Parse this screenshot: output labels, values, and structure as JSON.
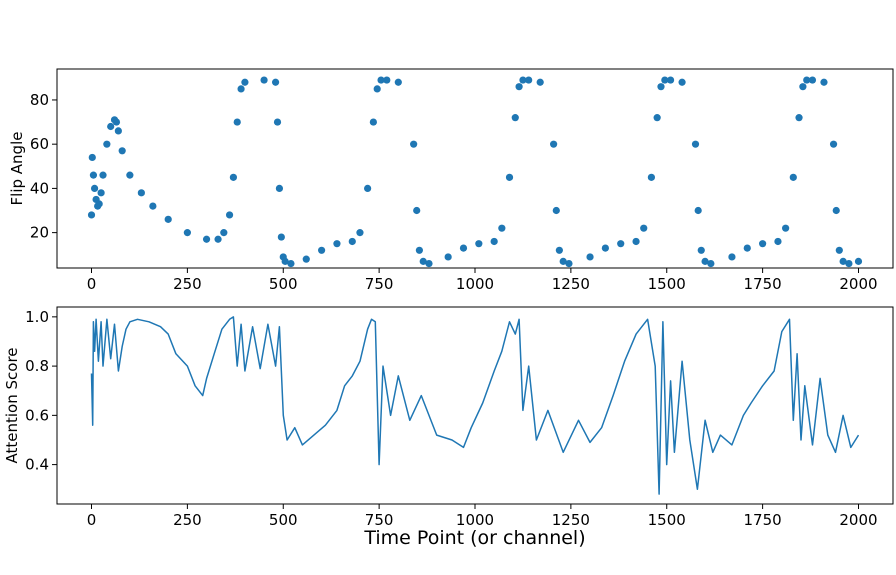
{
  "chart_data": [
    {
      "type": "scatter",
      "title": "",
      "xlabel": "",
      "ylabel": "Flip Angle",
      "xlim": [
        -90,
        2090
      ],
      "ylim": [
        4,
        94
      ],
      "xticks": [
        0,
        250,
        500,
        750,
        1000,
        1250,
        1500,
        1750,
        2000
      ],
      "yticks": [
        20,
        40,
        60,
        80
      ],
      "grid": false,
      "color": "#1f77b4",
      "series": [
        {
          "x": [
            0,
            2,
            5,
            8,
            12,
            16,
            20,
            25,
            30,
            40,
            50,
            60,
            65,
            70,
            80,
            100,
            130,
            160,
            200,
            250,
            300,
            330,
            345,
            360,
            370,
            380,
            390,
            400,
            450,
            480,
            485,
            490,
            495,
            500,
            505,
            520,
            560,
            600,
            640,
            680,
            700,
            720,
            735,
            745,
            755,
            770,
            800,
            840,
            848,
            855,
            865,
            880,
            930,
            970,
            1010,
            1050,
            1070,
            1090,
            1105,
            1115,
            1125,
            1140,
            1170,
            1205,
            1212,
            1220,
            1230,
            1245,
            1300,
            1340,
            1380,
            1420,
            1440,
            1460,
            1475,
            1485,
            1495,
            1510,
            1540,
            1575,
            1582,
            1590,
            1600,
            1615,
            1670,
            1710,
            1750,
            1790,
            1810,
            1830,
            1845,
            1855,
            1865,
            1880,
            1910,
            1935,
            1942,
            1950,
            1960,
            1975,
            2000
          ],
          "y": [
            28,
            54,
            46,
            40,
            35,
            32,
            33,
            38,
            46,
            60,
            68,
            71,
            70,
            66,
            57,
            46,
            38,
            32,
            26,
            20,
            17,
            17,
            20,
            28,
            45,
            70,
            85,
            88,
            89,
            88,
            70,
            40,
            18,
            9,
            7,
            6,
            8,
            12,
            15,
            16,
            20,
            40,
            70,
            85,
            89,
            89,
            88,
            60,
            30,
            12,
            7,
            6,
            9,
            13,
            15,
            16,
            22,
            45,
            72,
            86,
            89,
            89,
            88,
            60,
            30,
            12,
            7,
            6,
            9,
            13,
            15,
            16,
            22,
            45,
            72,
            86,
            89,
            89,
            88,
            60,
            30,
            12,
            7,
            6,
            9,
            13,
            15,
            16,
            22,
            45,
            72,
            86,
            89,
            89,
            88,
            60,
            30,
            12,
            7,
            6,
            7
          ]
        }
      ]
    },
    {
      "type": "line",
      "title": "",
      "xlabel": "Time Point (or channel)",
      "ylabel": "Attention Score",
      "xlim": [
        -90,
        2090
      ],
      "ylim": [
        0.24,
        1.04
      ],
      "xticks": [
        0,
        250,
        500,
        750,
        1000,
        1250,
        1500,
        1750,
        2000
      ],
      "yticks": [
        0.4,
        0.6,
        0.8,
        1.0
      ],
      "grid": false,
      "color": "#1f77b4",
      "series": [
        {
          "x": [
            0,
            3,
            5,
            8,
            12,
            18,
            25,
            30,
            40,
            50,
            60,
            70,
            80,
            90,
            100,
            120,
            150,
            180,
            200,
            220,
            250,
            270,
            290,
            300,
            320,
            340,
            360,
            370,
            380,
            390,
            400,
            420,
            440,
            460,
            480,
            490,
            500,
            510,
            530,
            550,
            580,
            610,
            640,
            660,
            680,
            700,
            720,
            730,
            740,
            750,
            760,
            780,
            800,
            830,
            860,
            900,
            940,
            970,
            990,
            1020,
            1050,
            1070,
            1090,
            1105,
            1115,
            1125,
            1140,
            1160,
            1190,
            1230,
            1270,
            1300,
            1330,
            1360,
            1390,
            1420,
            1450,
            1470,
            1480,
            1490,
            1500,
            1510,
            1520,
            1540,
            1560,
            1580,
            1600,
            1620,
            1640,
            1670,
            1700,
            1720,
            1750,
            1780,
            1800,
            1820,
            1830,
            1840,
            1850,
            1860,
            1880,
            1900,
            1920,
            1940,
            1960,
            1980,
            2000
          ],
          "y": [
            0.77,
            0.56,
            0.98,
            0.86,
            0.99,
            0.82,
            0.98,
            0.8,
            0.99,
            0.83,
            0.97,
            0.78,
            0.88,
            0.95,
            0.98,
            0.99,
            0.98,
            0.96,
            0.93,
            0.85,
            0.8,
            0.72,
            0.68,
            0.75,
            0.85,
            0.95,
            0.99,
            1.0,
            0.8,
            0.97,
            0.78,
            0.96,
            0.79,
            0.97,
            0.8,
            0.96,
            0.6,
            0.5,
            0.55,
            0.48,
            0.52,
            0.56,
            0.62,
            0.72,
            0.76,
            0.82,
            0.95,
            0.99,
            0.98,
            0.4,
            0.8,
            0.6,
            0.76,
            0.58,
            0.68,
            0.52,
            0.5,
            0.47,
            0.55,
            0.65,
            0.78,
            0.86,
            0.98,
            0.93,
            0.99,
            0.62,
            0.8,
            0.5,
            0.62,
            0.45,
            0.58,
            0.49,
            0.55,
            0.68,
            0.82,
            0.93,
            0.99,
            0.8,
            0.28,
            0.98,
            0.4,
            0.74,
            0.45,
            0.82,
            0.5,
            0.3,
            0.58,
            0.45,
            0.52,
            0.48,
            0.6,
            0.65,
            0.72,
            0.78,
            0.94,
            0.99,
            0.58,
            0.85,
            0.5,
            0.72,
            0.48,
            0.75,
            0.52,
            0.45,
            0.6,
            0.47,
            0.52
          ]
        }
      ]
    }
  ]
}
